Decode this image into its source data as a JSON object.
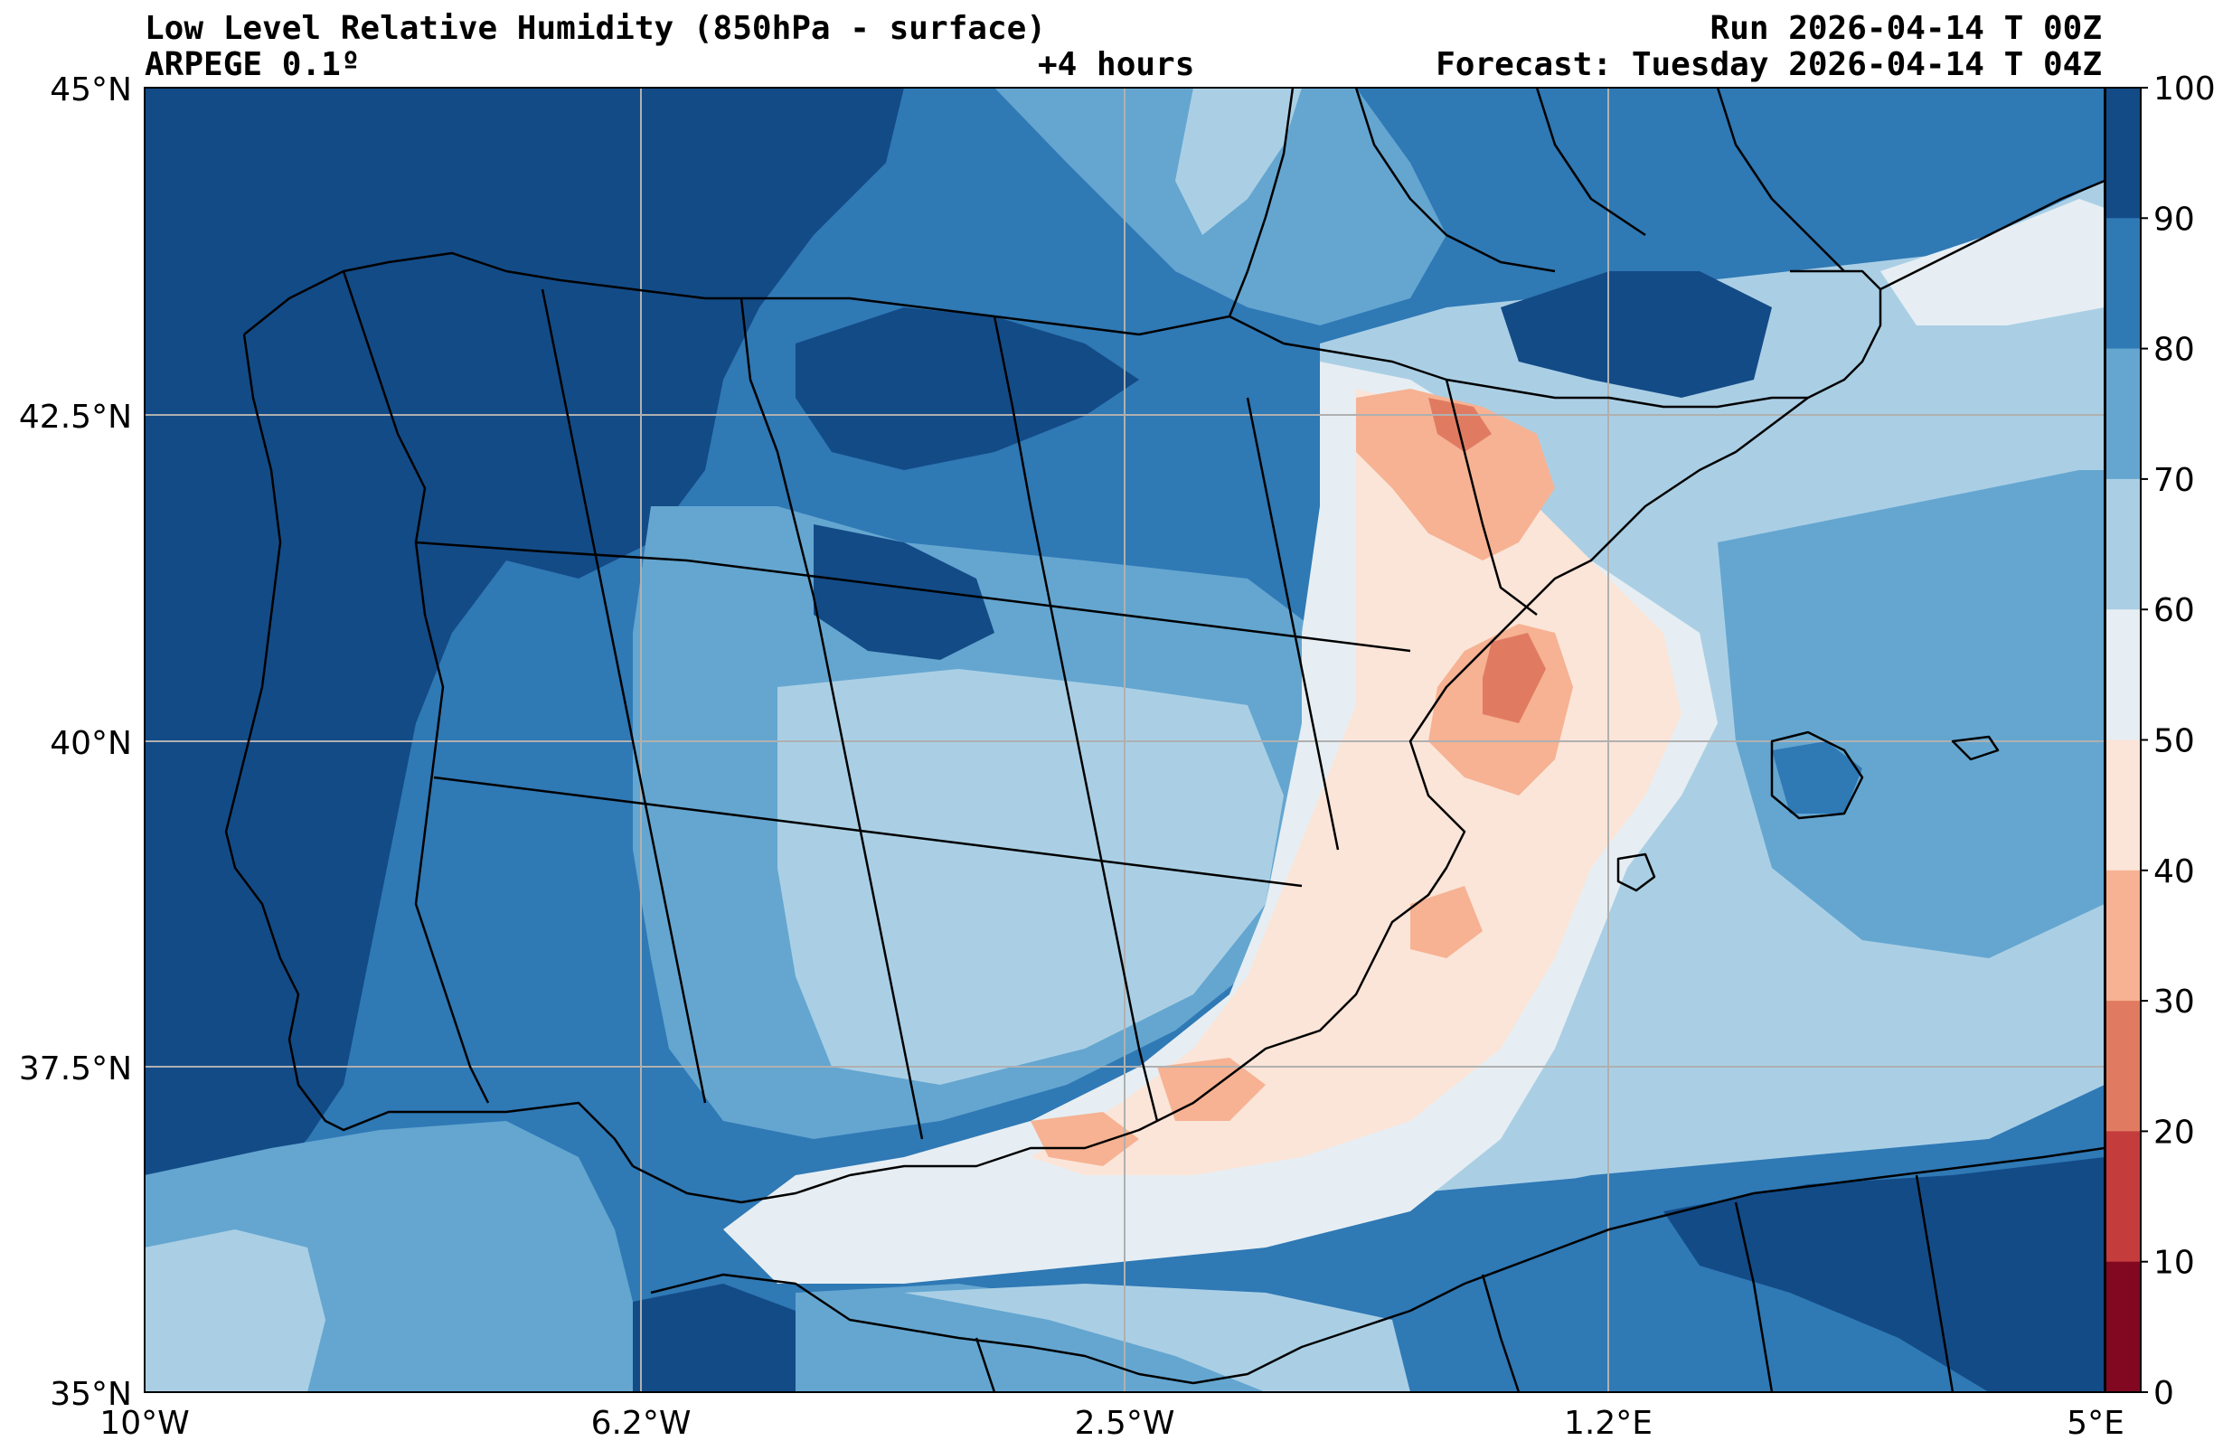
{
  "header": {
    "title": "Low Level Relative Humidity (850hPa - surface)",
    "model": "ARPEGE 0.1º",
    "lead_time": "+4 hours",
    "run": "Run 2026-04-14 T 00Z",
    "forecast": "Forecast: Tuesday 2026-04-14 T 04Z"
  },
  "map": {
    "lat_labels": [
      "45°N",
      "42.5°N",
      "40°N",
      "37.5°N",
      "35°N"
    ],
    "lon_labels": [
      "10°W",
      "6.2°W",
      "2.5°W",
      "1.2°E",
      "5°E"
    ],
    "lat_range": [
      35,
      45
    ],
    "lon_range": [
      -10,
      5
    ]
  },
  "colorbar": {
    "levels": [
      "100",
      "90",
      "80",
      "70",
      "60",
      "50",
      "40",
      "30",
      "20",
      "10",
      "0"
    ],
    "colors": [
      "#134b87",
      "#2f79b5",
      "#64a6d0",
      "#aacfe5",
      "#e6eef3",
      "#fbe5d8",
      "#f6b293",
      "#e07b62",
      "#c43c3c",
      "#820822"
    ]
  },
  "palette": {
    "coastline": "#000000",
    "grid": "#b0b0b0",
    "background": "#ffffff"
  }
}
